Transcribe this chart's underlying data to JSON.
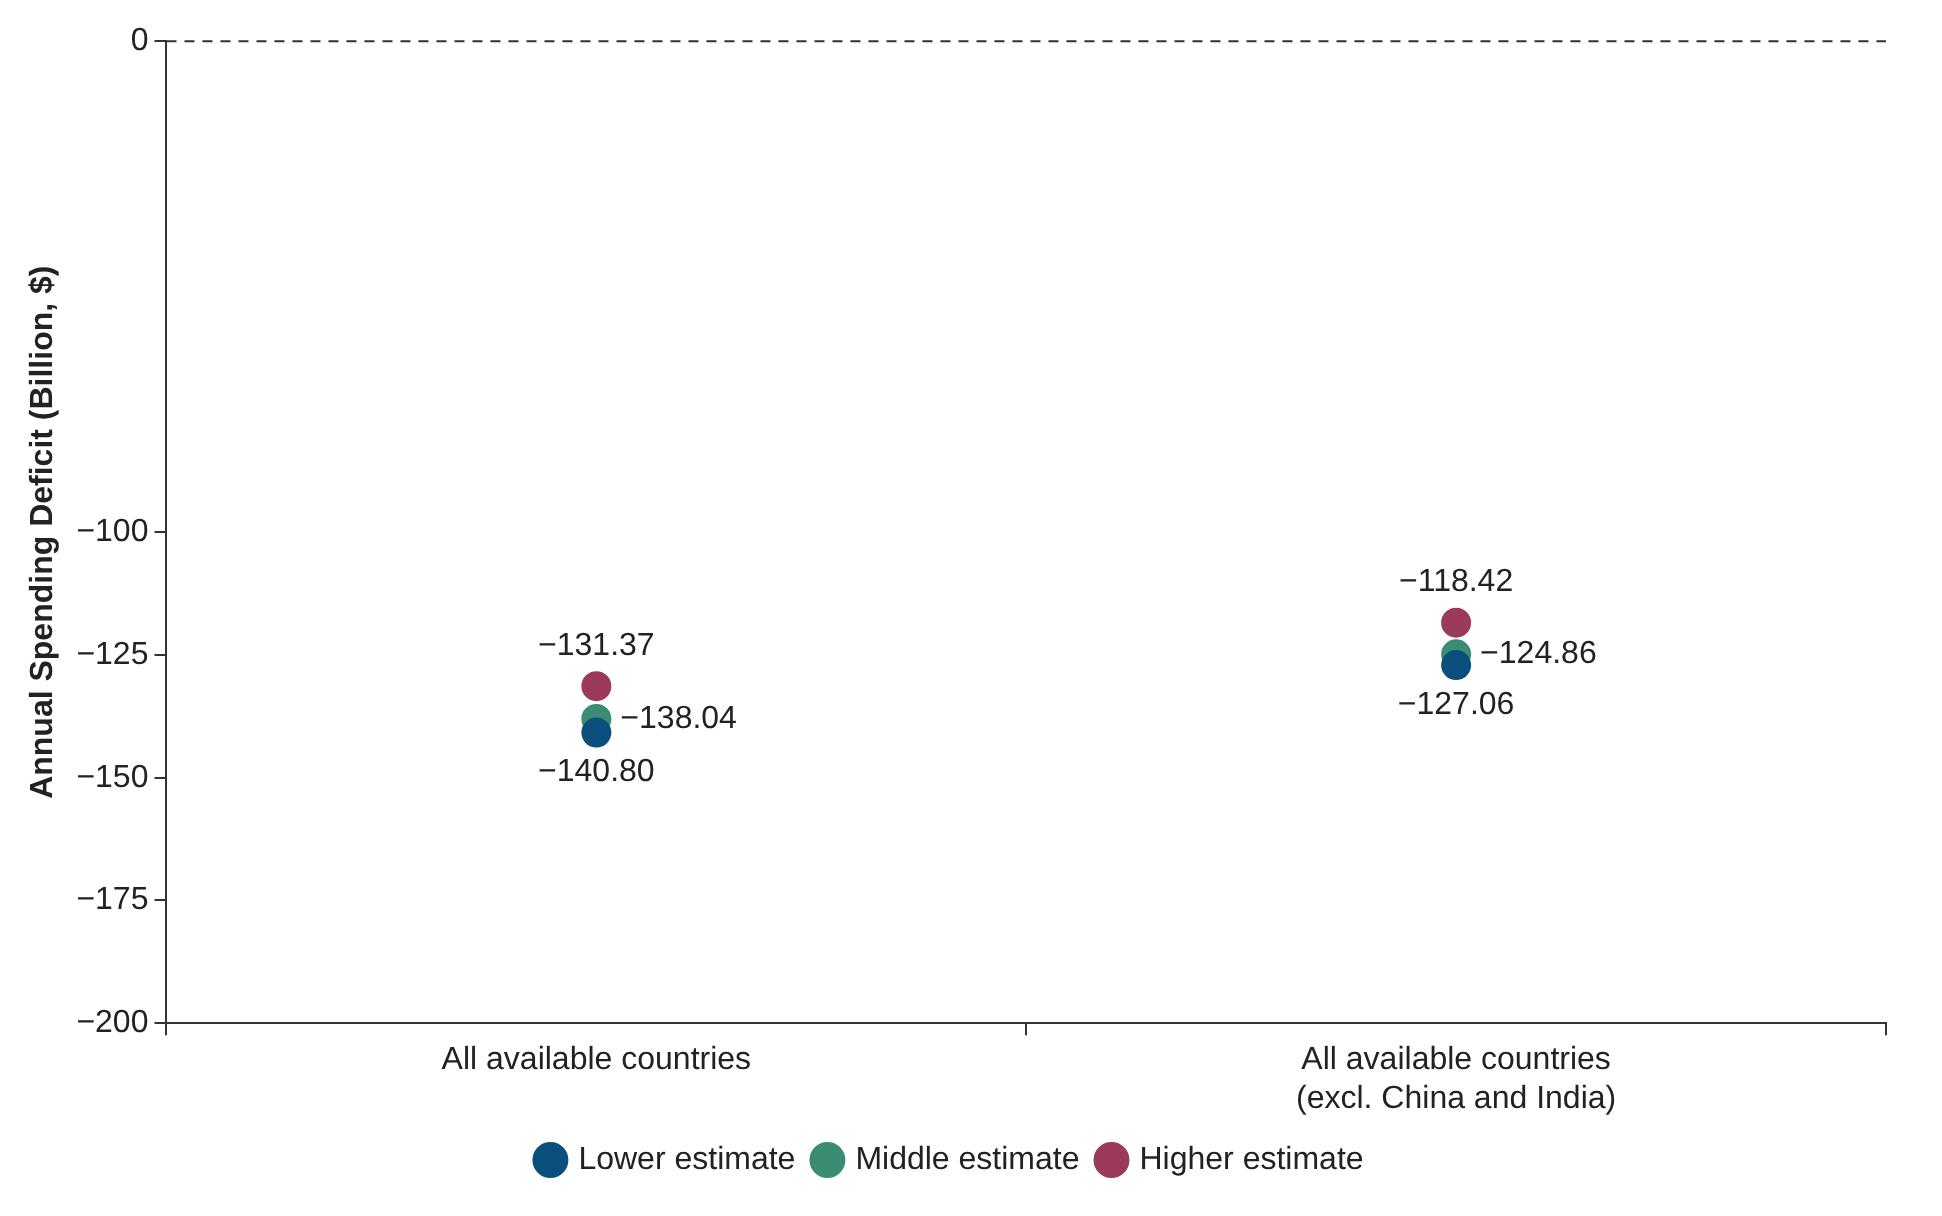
{
  "chart_data": {
    "type": "scatter",
    "ylabel": "Annual Spending Deficit (Billion, $)",
    "categories": [
      "All available countries",
      "All available countries (excl. China and India)"
    ],
    "series": [
      {
        "name": "Lower estimate",
        "color": "#0b4f7c",
        "values": [
          -140.8,
          -127.06
        ],
        "value_labels": [
          "−140.80",
          "−127.06"
        ]
      },
      {
        "name": "Middle estimate",
        "color": "#3a8c72",
        "values": [
          -138.04,
          -124.86
        ],
        "value_labels": [
          "−138.04",
          "−124.86"
        ]
      },
      {
        "name": "Higher estimate",
        "color": "#9c3a5c",
        "values": [
          -131.37,
          -118.42
        ],
        "value_labels": [
          "−131.37",
          "−118.42"
        ]
      }
    ],
    "ylim": [
      -200,
      0
    ],
    "yticks": [
      -200,
      -175,
      -150,
      -125,
      -100,
      0
    ],
    "ref_lines": [
      {
        "axis": "y",
        "value": 0,
        "color": "#333333",
        "line_style": "dashed"
      }
    ],
    "grid": false,
    "legend": "bottom",
    "marker": "circle"
  }
}
